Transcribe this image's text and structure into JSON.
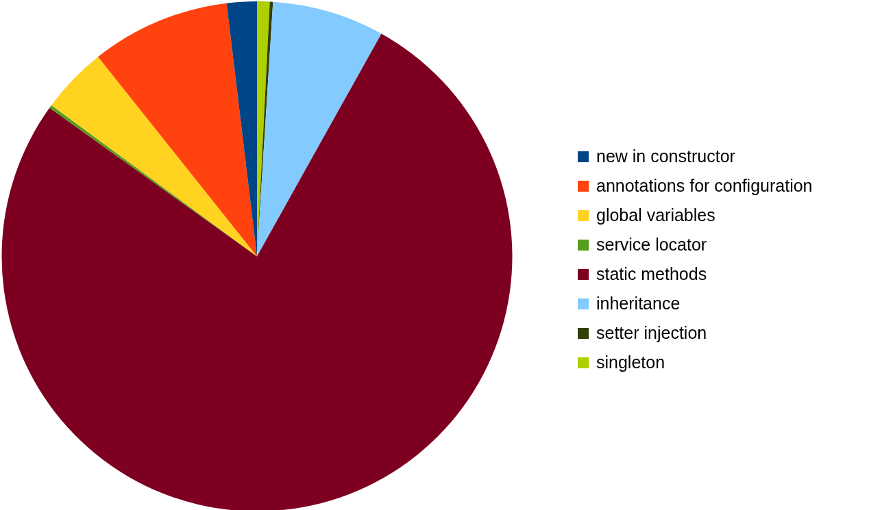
{
  "chart_data": {
    "type": "pie",
    "categories": [
      "new in constructor",
      "annotations for configuration",
      "global variables",
      "service locator",
      "static methods",
      "inheritance",
      "setter injection",
      "singleton"
    ],
    "values": [
      1.9,
      8.8,
      4.2,
      0.2,
      76.8,
      7.1,
      0.2,
      0.8
    ],
    "colors": [
      "#004586",
      "#ff420e",
      "#ffd320",
      "#579d1c",
      "#7e0021",
      "#83caff",
      "#314004",
      "#aecf00"
    ],
    "legend": "right"
  }
}
